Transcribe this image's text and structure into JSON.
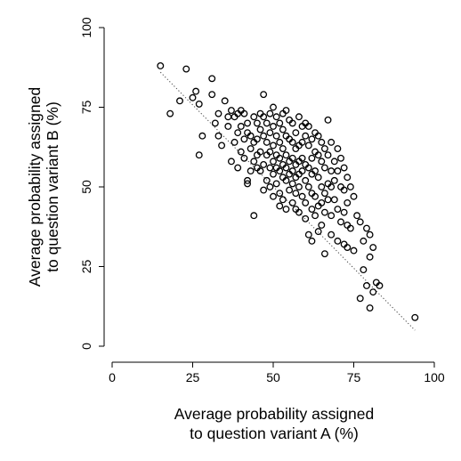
{
  "chart_data": {
    "type": "scatter",
    "title": "",
    "xlabel": [
      "Average probability assigned",
      "to question variant A (%)"
    ],
    "ylabel": [
      "Average probability assigned",
      "to question variant B (%)"
    ],
    "xlim": [
      0,
      100
    ],
    "ylim": [
      0,
      100
    ],
    "xticks": [
      0,
      25,
      50,
      75,
      100
    ],
    "yticks": [
      0,
      25,
      50,
      75,
      100
    ],
    "grid": false,
    "marker": "hollow-circle",
    "fit_line": {
      "style": "dotted",
      "x": [
        15,
        94
      ],
      "y": [
        86,
        5
      ]
    },
    "points": [
      [
        15,
        88
      ],
      [
        18,
        73
      ],
      [
        21,
        77
      ],
      [
        23,
        87
      ],
      [
        25,
        78
      ],
      [
        26,
        80
      ],
      [
        27,
        60
      ],
      [
        27,
        76
      ],
      [
        28,
        66
      ],
      [
        31,
        79
      ],
      [
        31,
        84
      ],
      [
        32,
        70
      ],
      [
        33,
        73
      ],
      [
        33,
        66
      ],
      [
        34,
        63
      ],
      [
        35,
        77
      ],
      [
        36,
        72
      ],
      [
        36,
        69
      ],
      [
        37,
        74
      ],
      [
        37,
        58
      ],
      [
        38,
        72
      ],
      [
        38,
        64
      ],
      [
        39,
        73
      ],
      [
        39,
        67
      ],
      [
        39,
        56
      ],
      [
        40,
        74
      ],
      [
        40,
        69
      ],
      [
        40,
        61
      ],
      [
        41,
        73
      ],
      [
        41,
        65
      ],
      [
        41,
        59
      ],
      [
        42,
        70
      ],
      [
        42,
        67
      ],
      [
        42,
        52
      ],
      [
        42,
        51
      ],
      [
        43,
        66
      ],
      [
        43,
        62
      ],
      [
        43,
        55
      ],
      [
        44,
        72
      ],
      [
        44,
        64
      ],
      [
        44,
        58
      ],
      [
        44,
        41
      ],
      [
        45,
        70
      ],
      [
        45,
        65
      ],
      [
        45,
        60
      ],
      [
        45,
        56
      ],
      [
        46,
        73
      ],
      [
        46,
        68
      ],
      [
        46,
        61
      ],
      [
        46,
        55
      ],
      [
        47,
        79
      ],
      [
        47,
        72
      ],
      [
        47,
        66
      ],
      [
        47,
        57
      ],
      [
        47,
        49
      ],
      [
        48,
        70
      ],
      [
        48,
        64
      ],
      [
        48,
        60
      ],
      [
        48,
        52
      ],
      [
        49,
        73
      ],
      [
        49,
        67
      ],
      [
        49,
        61
      ],
      [
        49,
        56
      ],
      [
        49,
        50
      ],
      [
        50,
        75
      ],
      [
        50,
        69
      ],
      [
        50,
        63
      ],
      [
        50,
        58
      ],
      [
        50,
        54
      ],
      [
        50,
        47
      ],
      [
        51,
        72
      ],
      [
        51,
        66
      ],
      [
        51,
        60
      ],
      [
        51,
        56
      ],
      [
        51,
        51
      ],
      [
        52,
        70
      ],
      [
        52,
        64
      ],
      [
        52,
        59
      ],
      [
        52,
        55
      ],
      [
        52,
        48
      ],
      [
        52,
        44
      ],
      [
        53,
        73
      ],
      [
        53,
        68
      ],
      [
        53,
        62
      ],
      [
        53,
        57
      ],
      [
        53,
        53
      ],
      [
        53,
        46
      ],
      [
        54,
        74
      ],
      [
        54,
        66
      ],
      [
        54,
        60
      ],
      [
        54,
        56
      ],
      [
        54,
        52
      ],
      [
        54,
        43
      ],
      [
        55,
        71
      ],
      [
        55,
        65
      ],
      [
        55,
        58
      ],
      [
        55,
        54
      ],
      [
        55,
        49
      ],
      [
        56,
        70
      ],
      [
        56,
        64
      ],
      [
        56,
        59
      ],
      [
        56,
        55
      ],
      [
        56,
        51
      ],
      [
        56,
        45
      ],
      [
        57,
        67
      ],
      [
        57,
        62
      ],
      [
        57,
        57
      ],
      [
        57,
        53
      ],
      [
        57,
        48
      ],
      [
        57,
        43
      ],
      [
        58,
        72
      ],
      [
        58,
        63
      ],
      [
        58,
        58
      ],
      [
        58,
        54
      ],
      [
        58,
        50
      ],
      [
        58,
        42
      ],
      [
        59,
        69
      ],
      [
        59,
        64
      ],
      [
        59,
        59
      ],
      [
        59,
        55
      ],
      [
        59,
        47
      ],
      [
        60,
        70
      ],
      [
        60,
        66
      ],
      [
        60,
        57
      ],
      [
        60,
        52
      ],
      [
        60,
        45
      ],
      [
        60,
        40
      ],
      [
        61,
        69
      ],
      [
        61,
        63
      ],
      [
        61,
        56
      ],
      [
        61,
        50
      ],
      [
        61,
        35
      ],
      [
        62,
        65
      ],
      [
        62,
        59
      ],
      [
        62,
        54
      ],
      [
        62,
        48
      ],
      [
        62,
        43
      ],
      [
        62,
        33
      ],
      [
        63,
        67
      ],
      [
        63,
        61
      ],
      [
        63,
        55
      ],
      [
        63,
        47
      ],
      [
        63,
        41
      ],
      [
        64,
        66
      ],
      [
        64,
        60
      ],
      [
        64,
        53
      ],
      [
        64,
        44
      ],
      [
        64,
        36
      ],
      [
        65,
        64
      ],
      [
        65,
        58
      ],
      [
        65,
        50
      ],
      [
        65,
        45
      ],
      [
        65,
        38
      ],
      [
        66,
        62
      ],
      [
        66,
        56
      ],
      [
        66,
        48
      ],
      [
        66,
        42
      ],
      [
        66,
        29
      ],
      [
        67,
        71
      ],
      [
        67,
        60
      ],
      [
        67,
        51
      ],
      [
        67,
        46
      ],
      [
        68,
        64
      ],
      [
        68,
        55
      ],
      [
        68,
        50
      ],
      [
        68,
        41
      ],
      [
        68,
        35
      ],
      [
        69,
        58
      ],
      [
        69,
        52
      ],
      [
        69,
        46
      ],
      [
        70,
        62
      ],
      [
        70,
        55
      ],
      [
        70,
        43
      ],
      [
        70,
        33
      ],
      [
        71,
        59
      ],
      [
        71,
        50
      ],
      [
        71,
        39
      ],
      [
        72,
        56
      ],
      [
        72,
        49
      ],
      [
        72,
        42
      ],
      [
        72,
        32
      ],
      [
        73,
        53
      ],
      [
        73,
        45
      ],
      [
        73,
        38
      ],
      [
        73,
        31
      ],
      [
        74,
        50
      ],
      [
        74,
        37
      ],
      [
        75,
        47
      ],
      [
        75,
        30
      ],
      [
        76,
        41
      ],
      [
        77,
        39
      ],
      [
        77,
        15
      ],
      [
        78,
        33
      ],
      [
        78,
        24
      ],
      [
        79,
        37
      ],
      [
        79,
        19
      ],
      [
        80,
        35
      ],
      [
        80,
        28
      ],
      [
        80,
        12
      ],
      [
        81,
        31
      ],
      [
        81,
        17
      ],
      [
        82,
        20
      ],
      [
        83,
        19
      ],
      [
        94,
        9
      ]
    ]
  }
}
